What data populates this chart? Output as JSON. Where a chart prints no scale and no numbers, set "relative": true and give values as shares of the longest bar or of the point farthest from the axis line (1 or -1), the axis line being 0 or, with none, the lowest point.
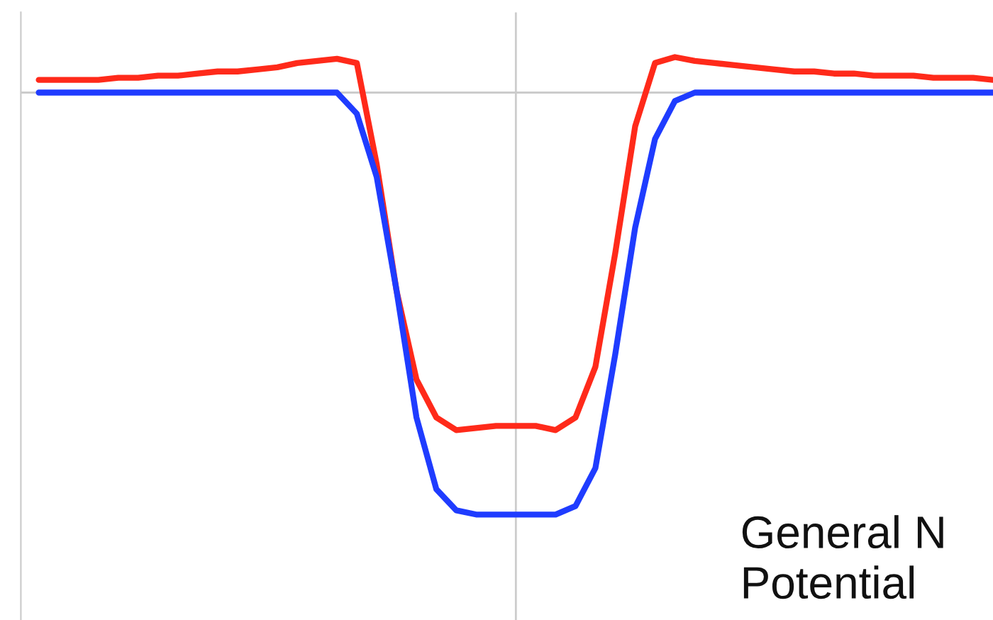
{
  "chart_data": {
    "type": "line",
    "relative": true,
    "categories": [
      null,
      null,
      null,
      null,
      null,
      null,
      null,
      null,
      null,
      null,
      null,
      null,
      null,
      null,
      null,
      null,
      null,
      null,
      null,
      null,
      null,
      null,
      null,
      null,
      null,
      null,
      null,
      null,
      null,
      null,
      null,
      null,
      null,
      null,
      null,
      null,
      null,
      null,
      null,
      null,
      null,
      null,
      null,
      null,
      null,
      null,
      null,
      null,
      null
    ],
    "series": [
      {
        "color": "#ff2a1a",
        "values": [
          0.03,
          0.03,
          0.03,
          0.03,
          0.035,
          0.035,
          0.04,
          0.04,
          0.045,
          0.05,
          0.05,
          0.055,
          0.06,
          0.07,
          0.075,
          0.08,
          0.07,
          -0.17,
          -0.47,
          -0.68,
          -0.77,
          -0.8,
          -0.795,
          -0.79,
          -0.79,
          -0.79,
          -0.8,
          -0.77,
          -0.65,
          -0.38,
          -0.08,
          0.07,
          0.084,
          0.075,
          0.07,
          0.065,
          0.06,
          0.055,
          0.05,
          0.05,
          0.045,
          0.045,
          0.04,
          0.04,
          0.04,
          0.035,
          0.035,
          0.035,
          0.03
        ]
      },
      {
        "color": "#1f3cff",
        "values": [
          0,
          0,
          0,
          0,
          0,
          0,
          0,
          0,
          0,
          0,
          0,
          0,
          0,
          0,
          0,
          0,
          -0.05,
          -0.2,
          -0.47,
          -0.77,
          -0.94,
          -0.99,
          -1,
          -1,
          -1,
          -1,
          -1,
          -0.98,
          -0.89,
          -0.62,
          -0.32,
          -0.11,
          -0.02,
          0,
          0,
          0,
          0,
          0,
          0,
          0,
          0,
          0,
          0,
          0,
          0,
          0,
          0,
          0,
          0
        ]
      }
    ],
    "annotations": [
      "General N\nPotential"
    ]
  }
}
